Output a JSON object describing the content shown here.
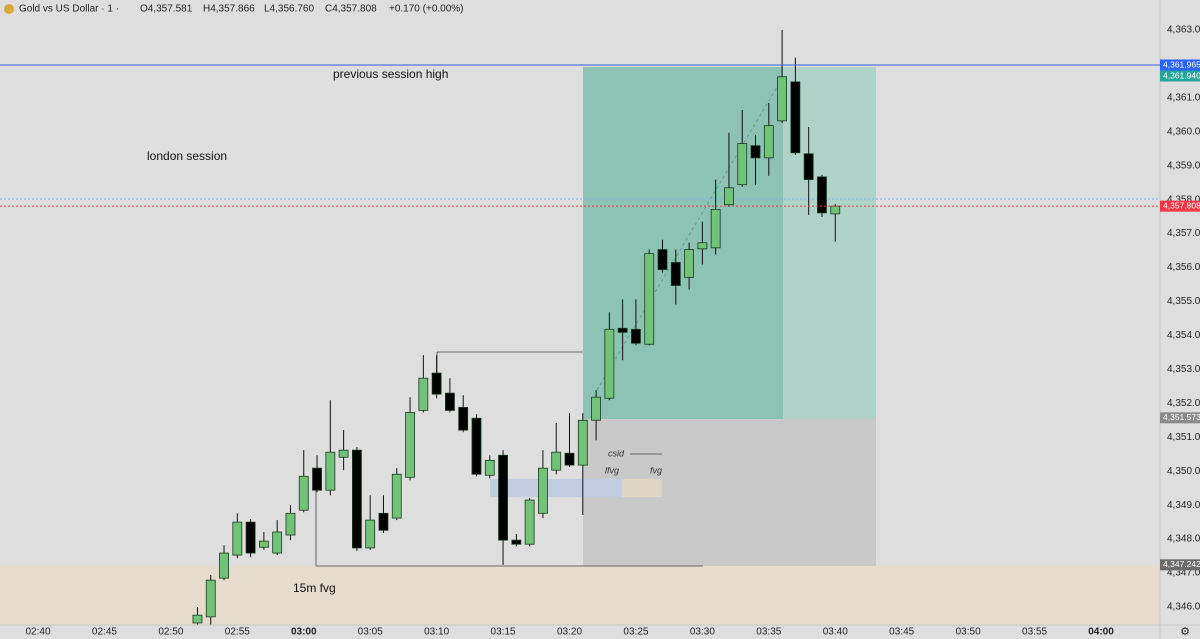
{
  "chart_data": {
    "type": "candlestick",
    "header": {
      "symbol": "Gold vs US Dollar · 1 ·",
      "open": "O4,357.581",
      "high": "H4,357.866",
      "low": "L4,356.760",
      "close": "C4,357.808",
      "change": "+0.170 (+0.00%)"
    },
    "annotations": [
      "previous session high",
      "london session",
      "csid",
      "lfvg",
      "fvg",
      "15m fvg"
    ],
    "up_color": "#72c27a",
    "down_color": "#000000",
    "x": [
      "02:52",
      "02:53",
      "02:54",
      "02:55",
      "02:56",
      "02:57",
      "02:58",
      "02:59",
      "03:00",
      "03:01",
      "03:02",
      "03:03",
      "03:04",
      "03:05",
      "03:06",
      "03:07",
      "03:08",
      "03:09",
      "03:10",
      "03:11",
      "03:12",
      "03:13",
      "03:14",
      "03:15",
      "03:16",
      "03:17",
      "03:18",
      "03:19",
      "03:20",
      "03:21",
      "03:22",
      "03:23",
      "03:24",
      "03:25",
      "03:26",
      "03:27",
      "03:28",
      "03:29",
      "03:30",
      "03:31",
      "03:32",
      "03:33",
      "03:34",
      "03:35",
      "03:36",
      "03:37",
      "03:38",
      "03:39",
      "03:40"
    ],
    "ohlc": [
      [
        4345.53,
        4346.0,
        4345.06,
        4345.76
      ],
      [
        4345.71,
        4346.94,
        4345.32,
        4346.79
      ],
      [
        4346.85,
        4347.82,
        4346.79,
        4347.59
      ],
      [
        4347.53,
        4348.76,
        4347.44,
        4348.5
      ],
      [
        4348.5,
        4348.59,
        4347.47,
        4347.59
      ],
      [
        4347.76,
        4348.21,
        4347.68,
        4347.94
      ],
      [
        4347.59,
        4348.56,
        4347.53,
        4348.21
      ],
      [
        4348.12,
        4349.0,
        4347.97,
        4348.76
      ],
      [
        4348.85,
        4350.62,
        4348.79,
        4349.85
      ],
      [
        4350.09,
        4350.47,
        4349.38,
        4349.44
      ],
      [
        4349.44,
        4352.09,
        4349.29,
        4350.56
      ],
      [
        4350.41,
        4351.21,
        4350.03,
        4350.62
      ],
      [
        4350.62,
        4350.71,
        4347.65,
        4347.74
      ],
      [
        4347.74,
        4349.29,
        4347.68,
        4348.56
      ],
      [
        4348.76,
        4349.29,
        4348.18,
        4348.26
      ],
      [
        4348.62,
        4350.09,
        4348.56,
        4349.91
      ],
      [
        4349.82,
        4352.18,
        4349.73,
        4351.73
      ],
      [
        4351.79,
        4353.42,
        4351.73,
        4352.74
      ],
      [
        4352.89,
        4353.42,
        4352.15,
        4352.27
      ],
      [
        4352.3,
        4352.74,
        4351.73,
        4351.79
      ],
      [
        4351.88,
        4352.24,
        4351.15,
        4351.21
      ],
      [
        4351.56,
        4351.68,
        4349.85,
        4349.91
      ],
      [
        4349.88,
        4350.47,
        4349.79,
        4350.32
      ],
      [
        4350.47,
        4350.62,
        4347.24,
        4347.97
      ],
      [
        4347.97,
        4348.15,
        4347.79,
        4347.85
      ],
      [
        4347.85,
        4349.21,
        4347.79,
        4349.15
      ],
      [
        4348.76,
        4350.62,
        4348.62,
        4350.09
      ],
      [
        4350.03,
        4351.42,
        4349.91,
        4350.56
      ],
      [
        4350.53,
        4351.71,
        4350.12,
        4350.18
      ],
      [
        4350.18,
        4351.71,
        4348.71,
        4351.5
      ],
      [
        4351.5,
        4352.39,
        4350.91,
        4352.18
      ],
      [
        4352.15,
        4354.68,
        4352.09,
        4354.18
      ],
      [
        4354.21,
        4355.06,
        4353.27,
        4354.09
      ],
      [
        4354.18,
        4355.06,
        4353.71,
        4353.77
      ],
      [
        4353.74,
        4356.53,
        4353.71,
        4356.41
      ],
      [
        4356.53,
        4356.82,
        4355.85,
        4355.94
      ],
      [
        4356.15,
        4356.53,
        4354.91,
        4355.47
      ],
      [
        4355.71,
        4356.73,
        4355.35,
        4356.53
      ],
      [
        4356.55,
        4357.35,
        4356.09,
        4356.73
      ],
      [
        4356.58,
        4358.59,
        4356.38,
        4357.71
      ],
      [
        4357.85,
        4359.97,
        4357.79,
        4358.35
      ],
      [
        4358.44,
        4360.64,
        4358.38,
        4359.65
      ],
      [
        4359.59,
        4359.91,
        4358.44,
        4359.23
      ],
      [
        4359.23,
        4360.85,
        4358.7,
        4360.18
      ],
      [
        4360.32,
        4363.0,
        4360.26,
        4361.62
      ],
      [
        4361.47,
        4362.18,
        4359.32,
        4359.38
      ],
      [
        4359.35,
        4360.14,
        4357.55,
        4358.59
      ],
      [
        4358.67,
        4358.73,
        4357.49,
        4357.61
      ],
      [
        4357.581,
        4357.866,
        4356.76,
        4357.808
      ]
    ],
    "ylim": [
      4345.47,
      4363.88
    ],
    "yticks": [
      {
        "value": 4346,
        "label": "4,346.000"
      },
      {
        "value": 4347,
        "label": "4,347.000"
      },
      {
        "value": 4348,
        "label": "4,348.000"
      },
      {
        "value": 4349,
        "label": "4,349.000"
      },
      {
        "value": 4350,
        "label": "4,350.000"
      },
      {
        "value": 4351,
        "label": "4,351.000"
      },
      {
        "value": 4352,
        "label": "4,352.000"
      },
      {
        "value": 4353,
        "label": "4,353.000"
      },
      {
        "value": 4354,
        "label": "4,354.000"
      },
      {
        "value": 4355,
        "label": "4,355.000"
      },
      {
        "value": 4356,
        "label": "4,356.000"
      },
      {
        "value": 4357,
        "label": "4,357.000"
      },
      {
        "value": 4358,
        "label": "4,358.000"
      },
      {
        "value": 4359,
        "label": "4,359.000"
      },
      {
        "value": 4360,
        "label": "4,360.000"
      },
      {
        "value": 4361,
        "label": "4,361.000"
      },
      {
        "value": 4362,
        "label": "4,362.000"
      },
      {
        "value": 4363,
        "label": "4,363.000"
      }
    ],
    "xticks": [
      "02:40",
      "02:45",
      "02:50",
      "02:55",
      "03:00",
      "03:05",
      "03:10",
      "03:15",
      "03:20",
      "03:25",
      "03:30",
      "03:35",
      "03:40",
      "03:45",
      "03:50",
      "03:55",
      "04:00"
    ],
    "price_labels": [
      {
        "value": 4361.965,
        "label": "4,361.965",
        "color": "#2962ff",
        "line": "solid"
      },
      {
        "value": 4361.94,
        "label": "4,361.940",
        "color": "#26a69a"
      },
      {
        "value": 4357.808,
        "label": "4,357.808",
        "color": "#f23645",
        "line": "dotted"
      },
      {
        "value": 4351.573,
        "label": "4,351.573",
        "color": "#8a8a8a"
      },
      {
        "value": 4347.242,
        "label": "4,347.242",
        "color": "#6b6b6b"
      }
    ]
  }
}
